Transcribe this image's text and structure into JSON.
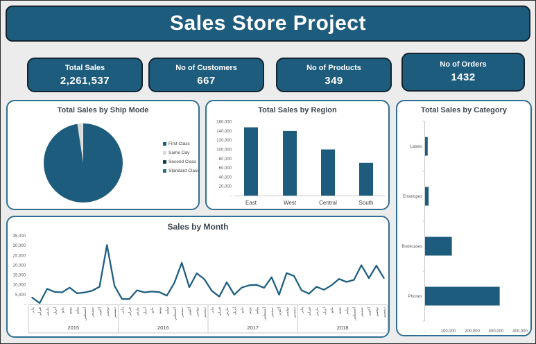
{
  "page": {
    "background": "#ececec",
    "accent_teal": "#1e5c7e",
    "panel_border": "#2f6e90",
    "axis_text_color": "#595959"
  },
  "header": {
    "title": "Sales Store Project"
  },
  "kpis": [
    {
      "label": "Total Sales",
      "value": "2,261,537"
    },
    {
      "label": "No of Customers",
      "value": "667"
    },
    {
      "label": "No of Products",
      "value": "349"
    },
    {
      "label": "No of Orders",
      "value": "1432"
    }
  ],
  "chart_data": [
    {
      "id": "ship_mode_pie",
      "type": "pie",
      "title": "Total Sales by Ship Mode",
      "legend": [
        {
          "label": "First Class",
          "color": "#1e5c7e"
        },
        {
          "label": "Same Day",
          "color": "#d9d9d9"
        },
        {
          "label": "Second Class",
          "color": "#14384d"
        },
        {
          "label": "Standard Class",
          "color": "#2a6d8d"
        }
      ],
      "slices": [
        {
          "label": "First/Second/Standard Class (rendered as one teal block)",
          "pct": 97.6,
          "color": "#1e5c7e"
        },
        {
          "label": "Same Day",
          "pct": 2.2,
          "color": "#d9d9d9"
        }
      ],
      "appearance": "single dominant teal slice with a small light-gray sliver just left of 12 o'clock",
      "legend_position": "right"
    },
    {
      "id": "region_bar",
      "type": "bar",
      "title": "Total Sales by Region",
      "categories": [
        "East",
        "West",
        "Central",
        "South"
      ],
      "values": [
        148000,
        140000,
        100000,
        71000
      ],
      "ylim": [
        0,
        160000
      ],
      "ytick_labels": [
        "-",
        "20,000",
        "40,000",
        "60,000",
        "80,000",
        "100,000",
        "120,000",
        "140,000",
        "160,000"
      ],
      "bar_color": "#1e5c7e",
      "grid": false
    },
    {
      "id": "month_line",
      "type": "line",
      "title": "Sales by Month",
      "years": [
        "2015",
        "2016",
        "2017",
        "2018"
      ],
      "months_ar": [
        "يناير",
        "فبراير",
        "مارس",
        "أبريل",
        "مايو",
        "يونيو",
        "يوليو",
        "أغسطس",
        "سبتمبر",
        "أكتوبر",
        "نوفمبر",
        "ديسمبر"
      ],
      "values": [
        3500,
        700,
        8000,
        6400,
        6200,
        8600,
        5700,
        6100,
        7000,
        9000,
        30300,
        9500,
        2800,
        2800,
        7200,
        6200,
        6600,
        6300,
        4500,
        11000,
        21200,
        8800,
        15900,
        12900,
        7000,
        4000,
        11300,
        5000,
        8600,
        9800,
        10000,
        8500,
        13900,
        5000,
        16000,
        14500,
        7200,
        5500,
        9000,
        7500,
        9800,
        13000,
        11500,
        12500,
        20000,
        13400,
        19800,
        13500
      ],
      "ylim": [
        0,
        35000
      ],
      "ytick_labels": [
        "-",
        "5,000",
        "10,000",
        "15,000",
        "20,000",
        "25,000",
        "30,000",
        "35,000"
      ],
      "line_color": "#1e5f82",
      "grid": false
    },
    {
      "id": "category_bar",
      "type": "bar-horizontal",
      "title": "Total Sales by Category",
      "categories": [
        "Labels",
        "Envelopes",
        "Bookcases",
        "Phones"
      ],
      "values": [
        11000,
        15000,
        112000,
        312000
      ],
      "xlim": [
        0,
        400000
      ],
      "xtick_labels": [
        "-",
        "100,000",
        "200,000",
        "300,000",
        "400,000"
      ],
      "bar_color": "#1e5c7e",
      "grid": false
    }
  ]
}
